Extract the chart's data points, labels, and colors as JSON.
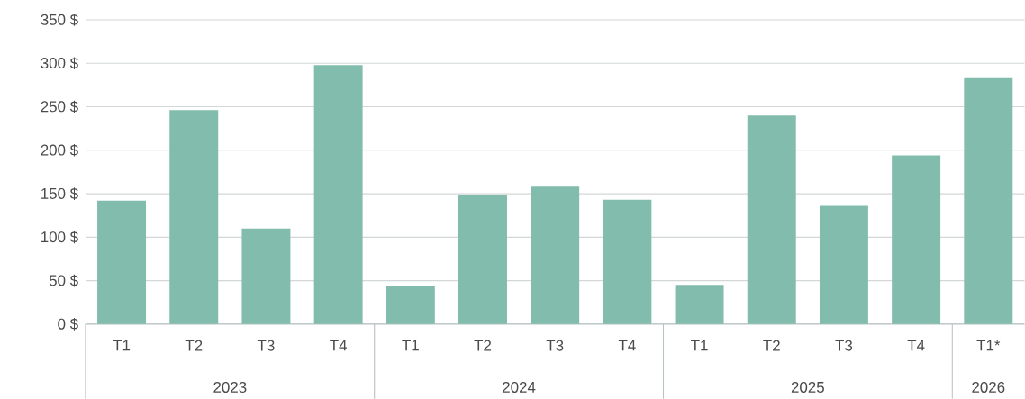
{
  "chart_data": {
    "type": "bar",
    "categories": [
      "T1",
      "T2",
      "T3",
      "T4",
      "T1",
      "T2",
      "T3",
      "T4",
      "T1",
      "T2",
      "T3",
      "T4",
      "T1*"
    ],
    "values": [
      142,
      246,
      110,
      298,
      44,
      149,
      158,
      143,
      45,
      240,
      136,
      194,
      283
    ],
    "color": "#82bcad",
    "ylim": [
      0,
      350
    ],
    "yticks": [
      {
        "value": 0,
        "label": "0 $"
      },
      {
        "value": 50,
        "label": "50 $"
      },
      {
        "value": 100,
        "label": "100 $"
      },
      {
        "value": 150,
        "label": "150 $"
      },
      {
        "value": 200,
        "label": "200 $"
      },
      {
        "value": 250,
        "label": "250 $"
      },
      {
        "value": 300,
        "label": "300 $"
      },
      {
        "value": 350,
        "label": "350 $"
      }
    ],
    "grid": "y",
    "annotations": [
      "2023",
      "2024",
      "2025",
      "2026"
    ]
  }
}
